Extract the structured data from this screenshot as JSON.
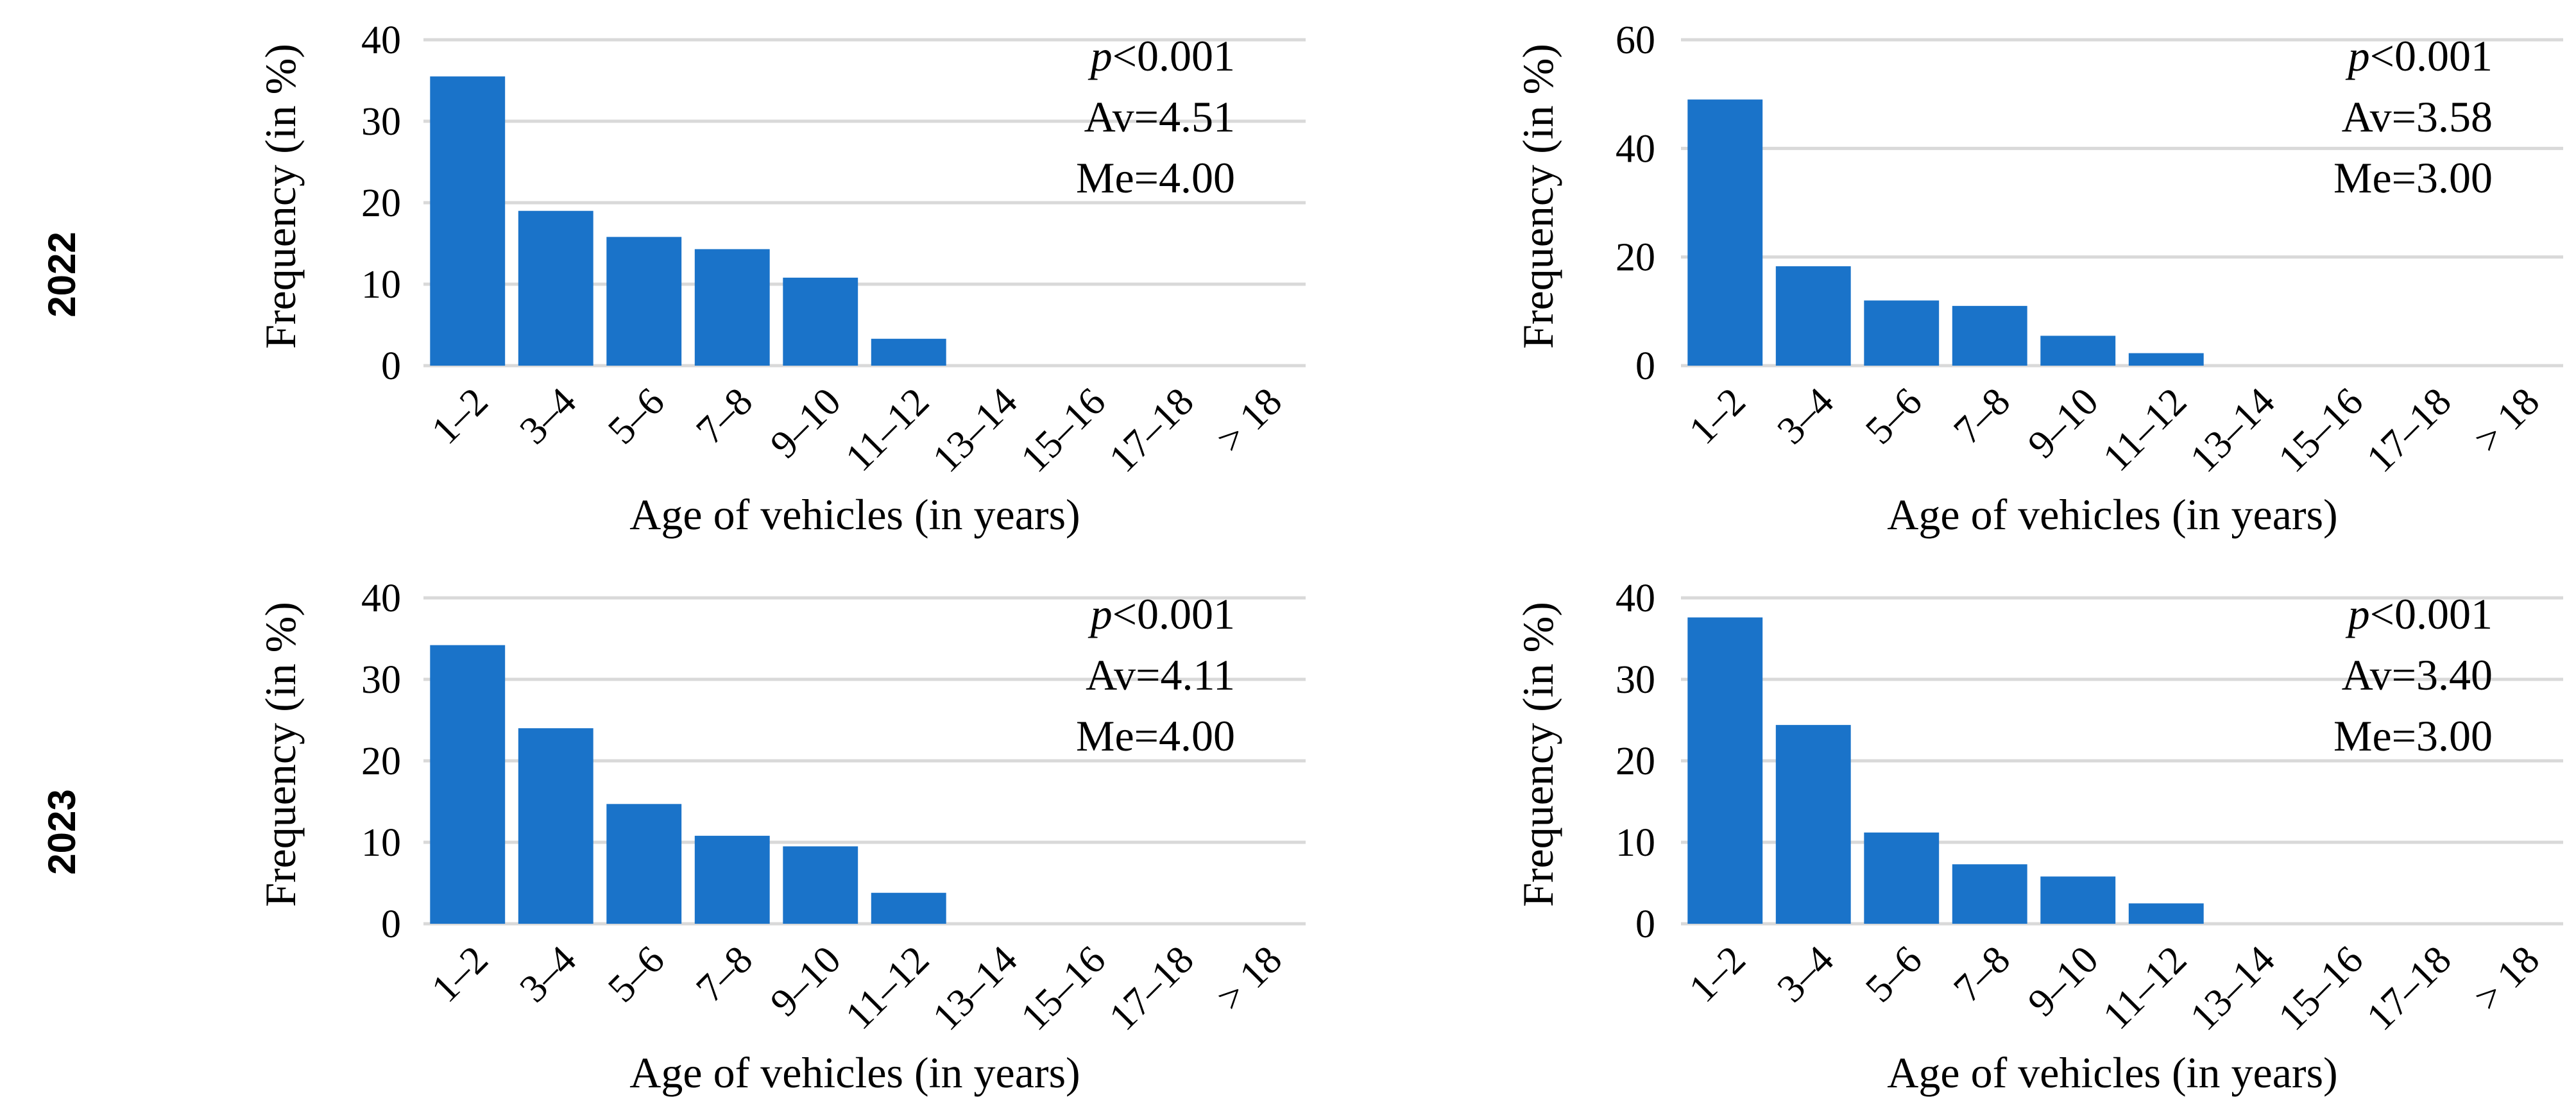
{
  "row_labels": [
    "2022",
    "2023"
  ],
  "chart_data": [
    {
      "type": "bar",
      "row": 0,
      "col": 0,
      "categories": [
        "1–2",
        "3–4",
        "5–6",
        "7–8",
        "9–10",
        "11–12",
        "13–14",
        "15–16",
        "17–18",
        "> 18"
      ],
      "values": [
        35.5,
        19,
        15.8,
        14.3,
        10.8,
        3.3,
        0,
        0,
        0,
        0
      ],
      "yticks": [
        0,
        10,
        20,
        30,
        40
      ],
      "ylim": [
        0,
        40
      ],
      "xlabel": "Age of vehicles (in years)",
      "ylabel": "Frequency (in %)",
      "annotation": {
        "p": "p",
        "p_rest": "<0.001",
        "av": "Av=4.51",
        "me": "Me=4.00"
      },
      "color": "#1a73c9"
    },
    {
      "type": "bar",
      "row": 0,
      "col": 1,
      "categories": [
        "1–2",
        "3–4",
        "5–6",
        "7–8",
        "9–10",
        "11–12",
        "13–14",
        "15–16",
        "17–18",
        "> 18"
      ],
      "values": [
        49,
        18.3,
        12,
        11,
        5.5,
        2.3,
        0,
        0,
        0,
        0
      ],
      "yticks": [
        0,
        20,
        40,
        60
      ],
      "ylim": [
        0,
        60
      ],
      "xlabel": "Age of vehicles (in years)",
      "ylabel": "Frequency (in %)",
      "annotation": {
        "p": "p",
        "p_rest": "<0.001",
        "av": "Av=3.58",
        "me": "Me=3.00"
      },
      "color": "#1a73c9"
    },
    {
      "type": "bar",
      "row": 1,
      "col": 0,
      "categories": [
        "1–2",
        "3–4",
        "5–6",
        "7–8",
        "9–10",
        "11–12",
        "13–14",
        "15–16",
        "17–18",
        "> 18"
      ],
      "values": [
        34.2,
        24,
        14.7,
        10.8,
        9.5,
        3.8,
        0,
        0,
        0,
        0
      ],
      "yticks": [
        0,
        10,
        20,
        30,
        40
      ],
      "ylim": [
        0,
        40
      ],
      "xlabel": "Age of vehicles (in years)",
      "ylabel": "Frequency (in %)",
      "annotation": {
        "p": "p",
        "p_rest": "<0.001",
        "av": "Av=4.11",
        "me": "Me=4.00"
      },
      "color": "#1a73c9"
    },
    {
      "type": "bar",
      "row": 1,
      "col": 1,
      "categories": [
        "1–2",
        "3–4",
        "5–6",
        "7–8",
        "9–10",
        "11–12",
        "13–14",
        "15–16",
        "17–18",
        "> 18"
      ],
      "values": [
        37.6,
        24.4,
        11.2,
        7.3,
        5.8,
        2.5,
        0,
        0,
        0,
        0
      ],
      "yticks": [
        0,
        10,
        20,
        30,
        40
      ],
      "ylim": [
        0,
        40
      ],
      "xlabel": "Age of vehicles (in years)",
      "ylabel": "Frequency (in %)",
      "annotation": {
        "p": "p",
        "p_rest": "<0.001",
        "av": "Av=3.40",
        "me": "Me=3.00"
      },
      "color": "#1a73c9"
    }
  ]
}
